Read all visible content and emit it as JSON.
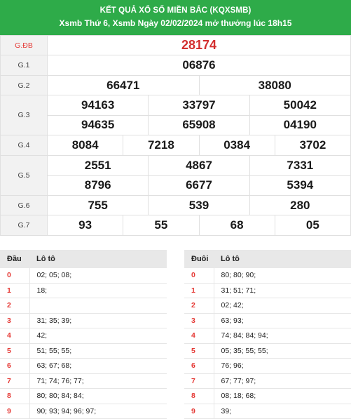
{
  "header": {
    "title": "KẾT QUẢ XỔ SỐ MIỀN BẮC (KQXSMB)",
    "subtitle": "Xsmb Thứ 6, Xsmb Ngày 02/02/2024 mở thưởng lúc 18h15"
  },
  "prizes": [
    {
      "label": "G.ĐB",
      "rows": [
        [
          "28174"
        ]
      ]
    },
    {
      "label": "G.1",
      "rows": [
        [
          "06876"
        ]
      ]
    },
    {
      "label": "G.2",
      "rows": [
        [
          "66471",
          "38080"
        ]
      ]
    },
    {
      "label": "G.3",
      "rows": [
        [
          "94163",
          "33797",
          "50042"
        ],
        [
          "94635",
          "65908",
          "04190"
        ]
      ]
    },
    {
      "label": "G.4",
      "rows": [
        [
          "8084",
          "7218",
          "0384",
          "3702"
        ]
      ]
    },
    {
      "label": "G.5",
      "rows": [
        [
          "2551",
          "4867",
          "7331"
        ],
        [
          "8796",
          "6677",
          "5394"
        ]
      ]
    },
    {
      "label": "G.6",
      "rows": [
        [
          "755",
          "539",
          "280"
        ]
      ]
    },
    {
      "label": "G.7",
      "rows": [
        [
          "93",
          "55",
          "68",
          "05"
        ]
      ]
    }
  ],
  "loto_head": {
    "header_key": "Đầu",
    "header_val": "Lô tô",
    "rows": [
      {
        "key": "0",
        "val": "02; 05; 08;"
      },
      {
        "key": "1",
        "val": "18;"
      },
      {
        "key": "2",
        "val": ""
      },
      {
        "key": "3",
        "val": "31; 35; 39;"
      },
      {
        "key": "4",
        "val": "42;"
      },
      {
        "key": "5",
        "val": "51; 55; 55;"
      },
      {
        "key": "6",
        "val": "63; 67; 68;"
      },
      {
        "key": "7",
        "val": "71; 74; 76; 77;"
      },
      {
        "key": "8",
        "val": "80; 80; 84; 84;"
      },
      {
        "key": "9",
        "val": "90; 93; 94; 96; 97;"
      }
    ]
  },
  "loto_tail": {
    "header_key": "Đuôi",
    "header_val": "Lô tô",
    "rows": [
      {
        "key": "0",
        "val": "80; 80; 90;"
      },
      {
        "key": "1",
        "val": "31; 51; 71;"
      },
      {
        "key": "2",
        "val": "02; 42;"
      },
      {
        "key": "3",
        "val": "63; 93;"
      },
      {
        "key": "4",
        "val": "74; 84; 84; 94;"
      },
      {
        "key": "5",
        "val": "05; 35; 55; 55;"
      },
      {
        "key": "6",
        "val": "76; 96;"
      },
      {
        "key": "7",
        "val": "67; 77; 97;"
      },
      {
        "key": "8",
        "val": "08; 18; 68;"
      },
      {
        "key": "9",
        "val": "39;"
      }
    ]
  }
}
